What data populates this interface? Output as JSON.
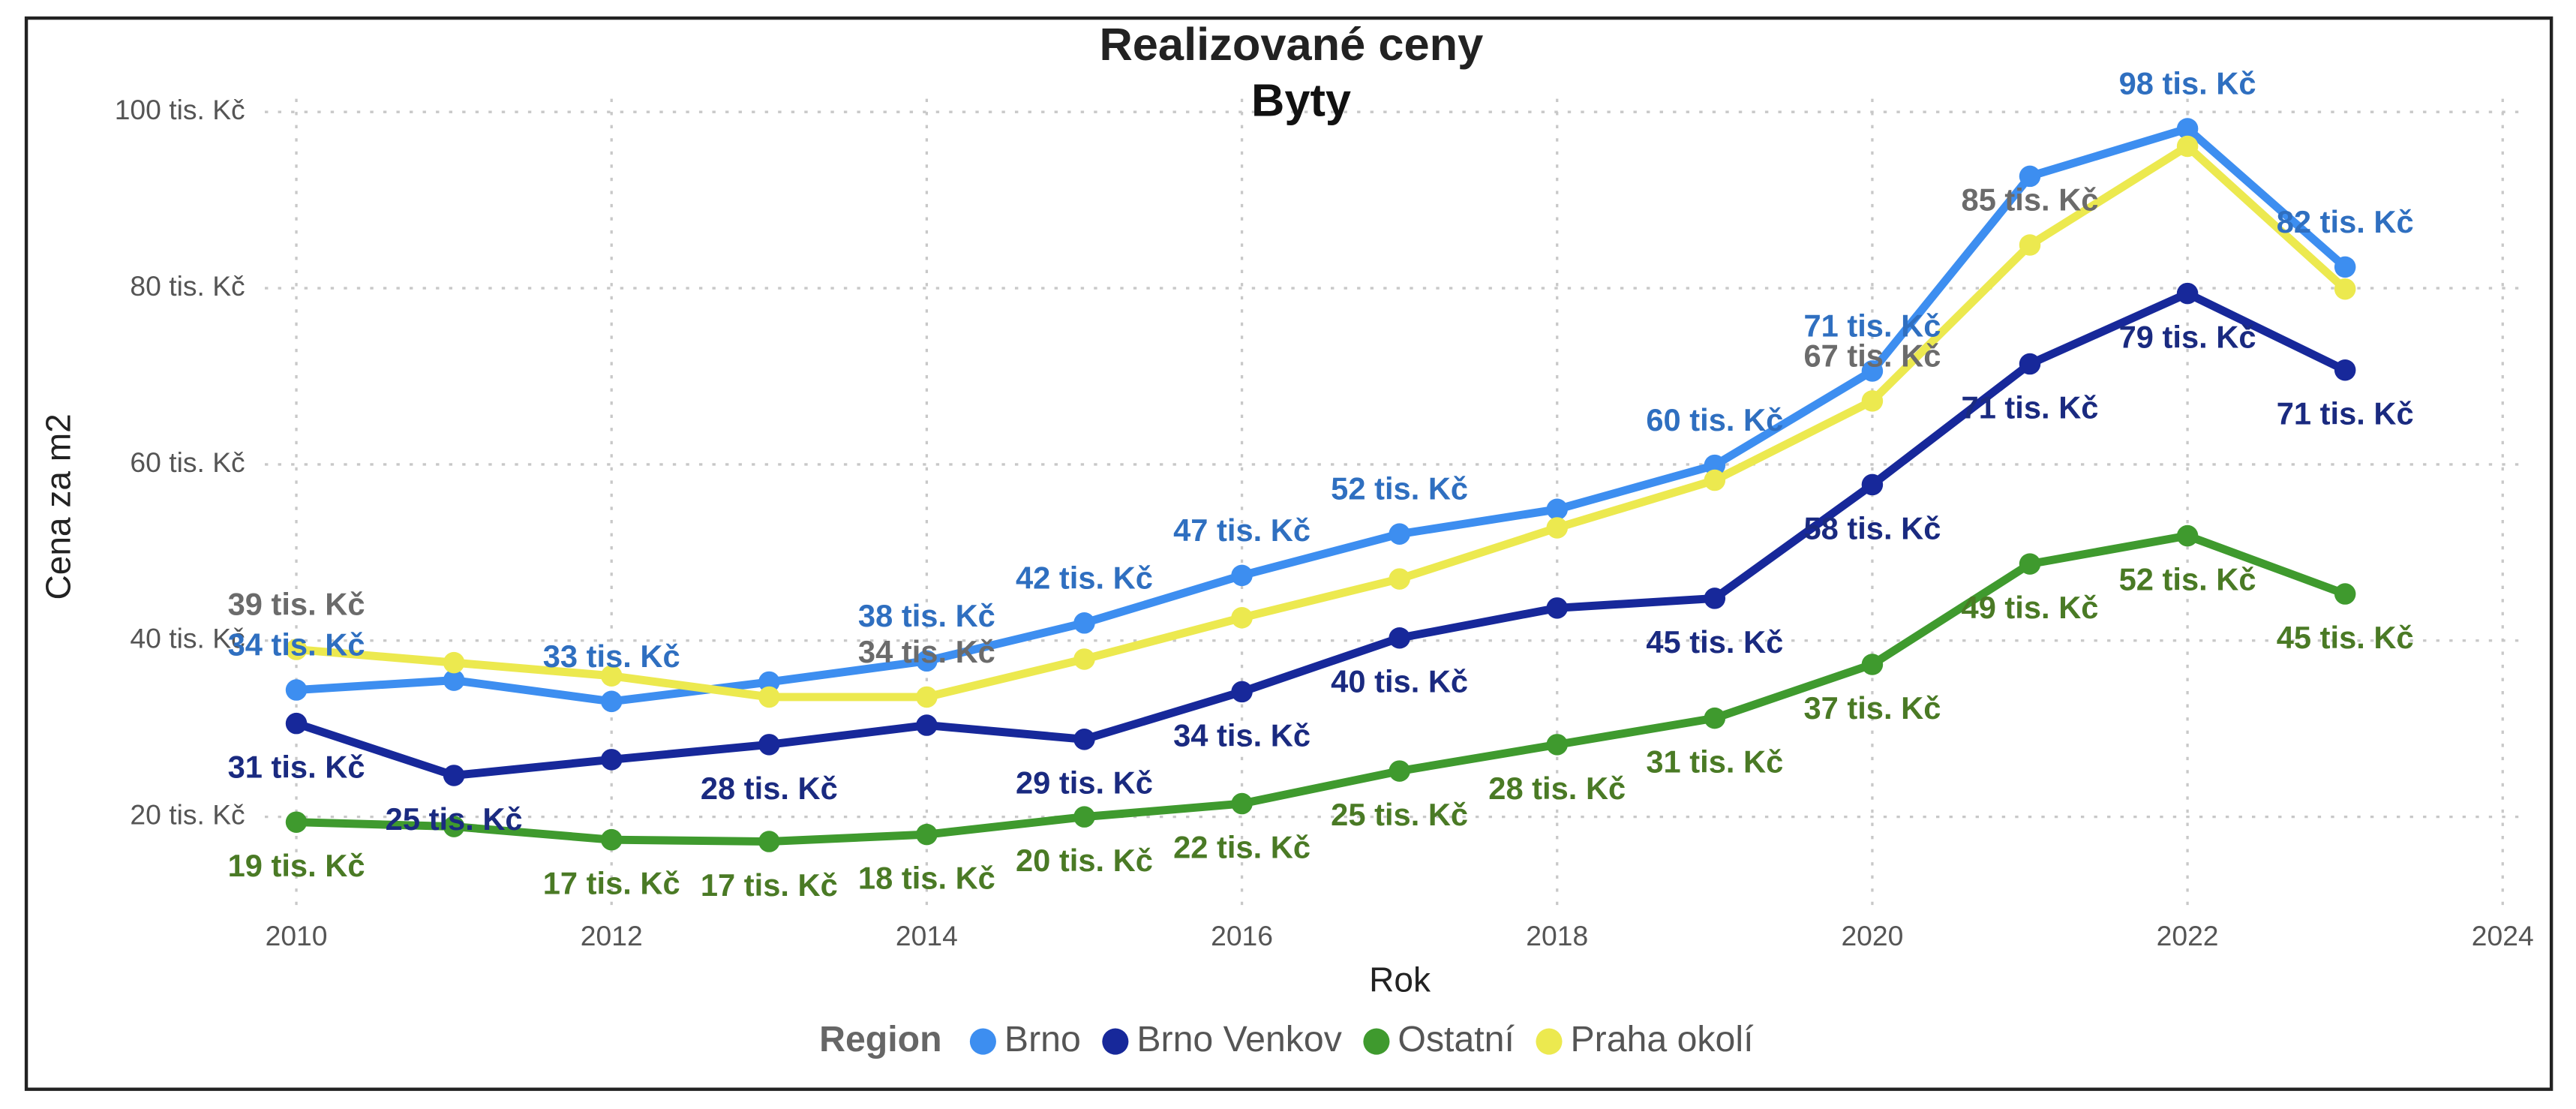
{
  "chart_data": {
    "type": "line",
    "title": "Realizované ceny",
    "subtitle": "Byty",
    "x_label": "Rok",
    "y_label": "Cena za m2",
    "legend_title": "Region",
    "legend": "bottom",
    "grid": true,
    "x": [
      2010,
      2011,
      2012,
      2013,
      2014,
      2015,
      2016,
      2017,
      2018,
      2019,
      2020,
      2021,
      2022,
      2023
    ],
    "xlim": [
      2009.8,
      2024.1
    ],
    "xticks": [
      2010,
      2012,
      2014,
      2016,
      2018,
      2020,
      2022,
      2024
    ],
    "ylim": [
      10,
      101.5
    ],
    "yticks": [
      {
        "value": 20,
        "label": "20 tis. Kč"
      },
      {
        "value": 40,
        "label": "40 tis. Kč"
      },
      {
        "value": 60,
        "label": "60 tis. Kč"
      },
      {
        "value": 80,
        "label": "80 tis. Kč"
      },
      {
        "value": 100,
        "label": "100 tis. Kč"
      }
    ],
    "series": [
      {
        "name": "Brno",
        "color": "#3d8ef0",
        "label_color": "#2f6fc0",
        "label_position": "above",
        "values": [
          34.4,
          35.5,
          33.1,
          35.3,
          37.7,
          42,
          47.4,
          52.1,
          54.9,
          59.9,
          70.6,
          92.7,
          98.1,
          82.4
        ],
        "value_labels": [
          "34 tis. Kč",
          null,
          "33 tis. Kč",
          null,
          "38 tis. Kč",
          "42 tis. Kč",
          "47 tis. Kč",
          "52 tis. Kč",
          null,
          "60 tis. Kč",
          "71 tis. Kč",
          null,
          "98 tis. Kč",
          "82 tis. Kč"
        ]
      },
      {
        "name": "Brno Venkov",
        "color": "#17289a",
        "label_color": "#1a2a80",
        "label_position": "below",
        "values": [
          30.6,
          24.7,
          26.5,
          28.2,
          30.4,
          28.8,
          34.2,
          40.3,
          43.7,
          44.8,
          57.7,
          71.4,
          79.4,
          70.7
        ],
        "value_labels": [
          "31 tis. Kč",
          "25 tis. Kč",
          null,
          "28 tis. Kč",
          null,
          "29 tis. Kč",
          "34 tis. Kč",
          "40 tis. Kč",
          null,
          "45 tis. Kč",
          "58 tis. Kč",
          "71 tis. Kč",
          "79 tis. Kč",
          "71 tis. Kč"
        ]
      },
      {
        "name": "Ostatní",
        "color": "#3f9a2e",
        "label_color": "#4a7a25",
        "label_position": "below",
        "values": [
          19.4,
          18.9,
          17.4,
          17.2,
          18,
          20,
          21.5,
          25.2,
          28.2,
          31.2,
          37.3,
          48.7,
          51.9,
          45.3
        ],
        "value_labels": [
          "19 tis. Kč",
          null,
          "17 tis. Kč",
          "17 tis. Kč",
          "18 tis. Kč",
          "20 tis. Kč",
          "22 tis. Kč",
          "25 tis. Kč",
          "28 tis. Kč",
          "31 tis. Kč",
          "37 tis. Kč",
          "49 tis. Kč",
          "52 tis. Kč",
          "45 tis. Kč"
        ]
      },
      {
        "name": "Praha okolí",
        "color": "#ece94f",
        "label_color": "#6b6b6b",
        "label_position": "above",
        "values": [
          39,
          37.5,
          36,
          33.6,
          33.6,
          37.9,
          42.6,
          47,
          52.8,
          58.2,
          67.2,
          84.9,
          96.1,
          79.9
        ],
        "value_labels": [
          "39 tis. Kč",
          null,
          null,
          null,
          "34 tis. Kč",
          null,
          null,
          null,
          null,
          null,
          "67 tis. Kč",
          "85 tis. Kč",
          null,
          null
        ]
      }
    ]
  }
}
